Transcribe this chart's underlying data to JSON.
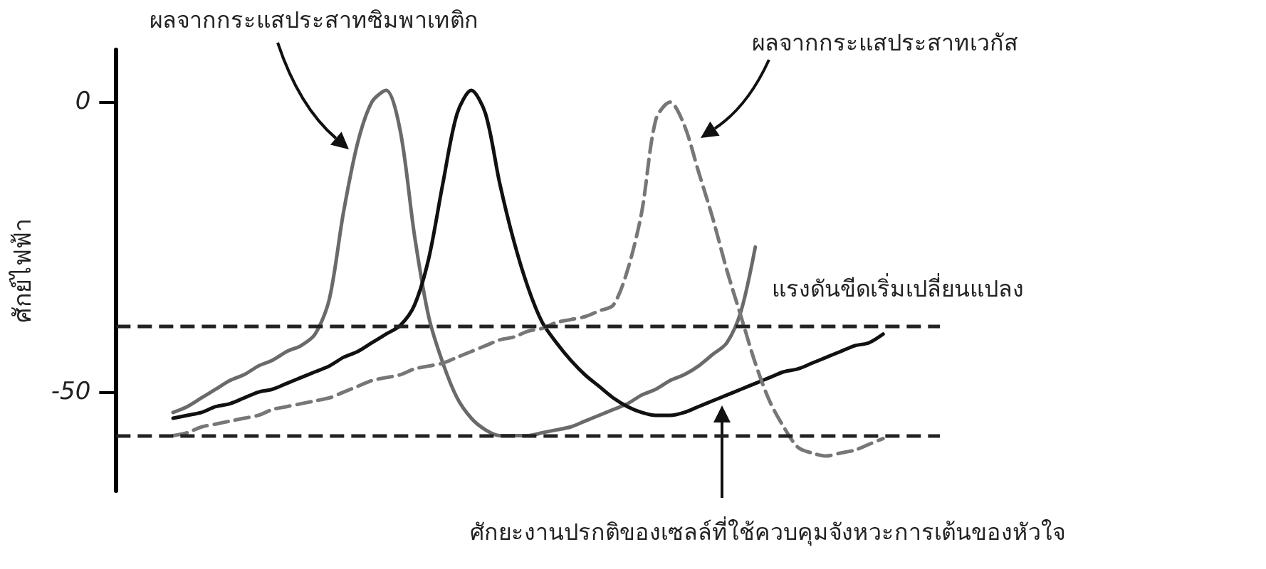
{
  "chart_data": {
    "type": "line",
    "ylabel": "ศักย์ไฟฟ้า",
    "categories": [
      null,
      null,
      null,
      null,
      null,
      null,
      null,
      null,
      null,
      null,
      null,
      null,
      null,
      null,
      null,
      null,
      null,
      null,
      null,
      null,
      null,
      null,
      null,
      null,
      null,
      null,
      null,
      null,
      null,
      null,
      null,
      null,
      null,
      null,
      null,
      null,
      null,
      null,
      null,
      null,
      null,
      null,
      null,
      null,
      null,
      null,
      null,
      null,
      null,
      null,
      null,
      null,
      null,
      null,
      null,
      null,
      null,
      null,
      null
    ],
    "series": [
      {
        "color": "#6a6a6a",
        "line_style": "solid",
        "values": [
          null,
          null,
          null,
          null,
          -53.5,
          -52.5,
          -51,
          -49.5,
          -48,
          -47,
          -45.5,
          -44.5,
          -43,
          -42,
          -40,
          -34,
          -19,
          -7,
          0,
          2,
          -5,
          -23,
          -37,
          -45,
          -51,
          -54.5,
          -56.5,
          -57.5,
          -57.5,
          -57.5,
          -57,
          -56.5,
          -56,
          -55,
          -54,
          -53,
          -52,
          -50.5,
          -49.5,
          -48,
          -47,
          -45.5,
          -43.5,
          -41.5,
          -36,
          -25,
          null,
          null,
          null,
          null,
          null,
          null,
          null,
          null,
          null,
          null,
          null,
          null,
          null
        ]
      },
      {
        "color": "#111111",
        "line_style": "solid",
        "values": [
          null,
          null,
          null,
          null,
          -54.5,
          -54,
          -53.5,
          -52.5,
          -52,
          -51,
          -50,
          -49.5,
          -48.5,
          -47.5,
          -46.5,
          -45.5,
          -44,
          -43,
          -41.5,
          -40,
          -38.5,
          -35,
          -27,
          -14,
          -2,
          2,
          -2,
          -14,
          -24,
          -32,
          -38,
          -41.5,
          -44.5,
          -47,
          -49,
          -51,
          -52.5,
          -53.5,
          -54,
          -54,
          -53.5,
          -52.5,
          -51.5,
          -50.5,
          -49.5,
          -48.5,
          -47.5,
          -46.5,
          -46,
          -45,
          -44,
          -43,
          -42,
          -41.5,
          -40,
          null,
          null,
          null,
          null
        ]
      },
      {
        "color": "#777777",
        "line_style": "dashed",
        "values": [
          null,
          null,
          null,
          null,
          -57.5,
          -57,
          -56,
          -55.5,
          -55,
          -54.5,
          -54,
          -53,
          -52.5,
          -52,
          -51.5,
          -51,
          -50,
          -49,
          -48,
          -47.5,
          -47,
          -46,
          -45.5,
          -45,
          -44,
          -43,
          -42,
          -41,
          -40.5,
          -39.5,
          -39,
          -38,
          -37.5,
          -37,
          -36,
          -35,
          -29,
          -19,
          -3,
          0,
          -4,
          -12,
          -20,
          -29,
          -37,
          -45,
          -51.5,
          -56,
          -59.5,
          -60.5,
          -61,
          -60.5,
          -60,
          -59,
          -58,
          null,
          null,
          null,
          null
        ]
      }
    ],
    "ylim": [
      -67,
      9
    ],
    "yticks": [
      -50,
      0
    ],
    "tick_labels": "y",
    "grid": false,
    "marker": "none",
    "ref_lines": [
      {
        "axis": "y",
        "value": -38.5,
        "label": "แรงดันขีดเริ่มเปลี่ยนแปลง",
        "color": "#222222",
        "line_style": "dashed"
      },
      {
        "axis": "y",
        "value": -57.5,
        "color": "#222222",
        "line_style": "dashed"
      }
    ],
    "annotations": [
      "ผลจากกระแสประสาทซิมพาเทติก",
      "ผลจากกระแสประสาทเวกัส",
      "ศักยะงานปรกติของเซลล์ที่ใช้ควบคุมจังหวะการเต้นของหัวใจ"
    ]
  }
}
